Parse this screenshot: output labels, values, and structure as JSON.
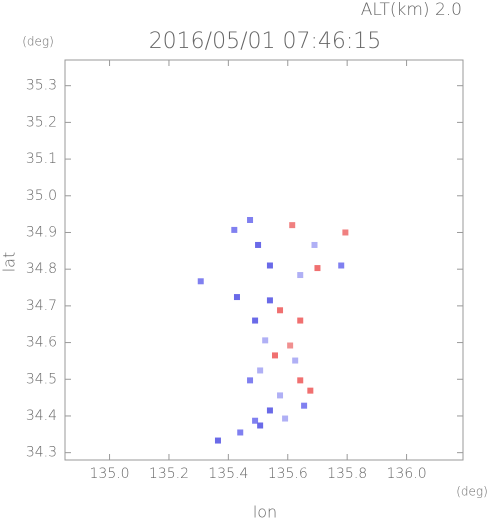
{
  "chart_data": {
    "type": "scatter",
    "title": "2016/05/01 07:46:15",
    "subtitle": "ALT(km) 2.0",
    "y_unit": "(deg)",
    "x_unit": "(deg)",
    "xlabel": "lon",
    "ylabel": "lat",
    "xlim": [
      134.85,
      136.19
    ],
    "ylim": [
      34.28,
      35.37
    ],
    "xticks": [
      {
        "value": 135.0,
        "label": "135.0"
      },
      135.2,
      135.4,
      135.6,
      135.8,
      {
        "value": 136.0,
        "label": "136.0"
      }
    ],
    "yticks": [
      35.3,
      35.2,
      35.1,
      {
        "value": 35.0,
        "label": "35.0"
      },
      34.9,
      34.8,
      34.7,
      34.6,
      34.5,
      34.4,
      34.3
    ],
    "series": [
      {
        "x": [
          135.794,
          135.473,
          135.5,
          135.615,
          135.54,
          135.69,
          135.7,
          135.78,
          135.642,
          135.42,
          135.307,
          135.429,
          135.54,
          135.574,
          135.49,
          135.642,
          135.524,
          135.608,
          135.557,
          135.507,
          135.642,
          135.574,
          135.655,
          135.54,
          135.49,
          135.507,
          135.44,
          135.365,
          135.591,
          135.676,
          135.473,
          135.625
        ],
        "values": [
          34.9,
          34.934,
          34.866,
          34.92,
          34.81,
          34.866,
          34.803,
          34.81,
          34.784,
          34.907,
          34.767,
          34.724,
          34.715,
          34.688,
          34.66,
          34.66,
          34.606,
          34.592,
          34.565,
          34.524,
          34.497,
          34.456,
          34.428,
          34.415,
          34.387,
          34.374,
          34.355,
          34.333,
          34.393,
          34.469,
          34.497,
          34.551
        ],
        "colors": [
          "#f08080",
          "#8080f0",
          "#6a6ae8",
          "#f08080",
          "#6a6ae8",
          "#b0b0f5",
          "#f07070",
          "#8080f0",
          "#b0b0f5",
          "#8080f0",
          "#8080f0",
          "#6a6ae8",
          "#6a6ae8",
          "#f07070",
          "#6a6ae8",
          "#f07070",
          "#b0b0f5",
          "#f09090",
          "#f07070",
          "#b0b0f5",
          "#f07070",
          "#b0b0f5",
          "#8080f0",
          "#6a6ae8",
          "#8080f0",
          "#6a6ae8",
          "#8080f0",
          "#6a6ae8",
          "#b0b0f5",
          "#f07070",
          "#8080f0",
          "#b0b0f5"
        ]
      }
    ]
  }
}
